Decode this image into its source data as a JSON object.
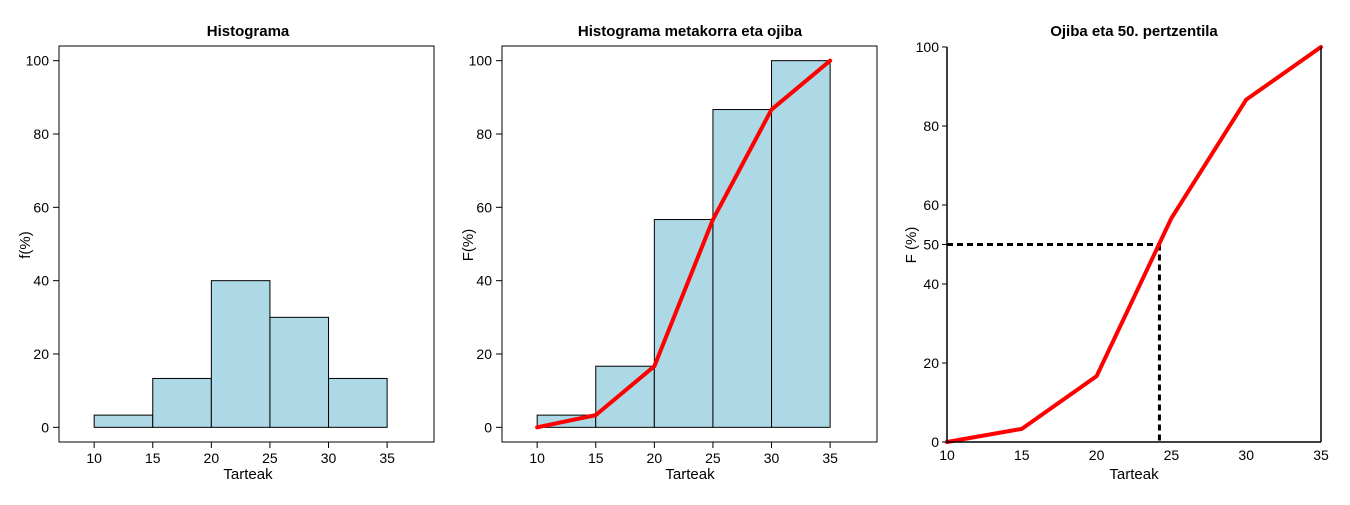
{
  "colors": {
    "bar_fill": "#add8e6",
    "bar_stroke": "#000000",
    "line": "#ff0000",
    "dashed": "#000000"
  },
  "chart_data": [
    {
      "type": "bar",
      "title": "Histograma",
      "xlabel": "Tarteak",
      "ylabel": "f(%)",
      "bin_edges": [
        10,
        15,
        20,
        25,
        30,
        35
      ],
      "values": [
        3.33,
        13.33,
        40,
        30,
        13.33
      ],
      "x_ticks": [
        10,
        15,
        20,
        25,
        30,
        35
      ],
      "y_ticks": [
        0,
        20,
        40,
        60,
        80,
        100
      ],
      "xlim": [
        7,
        39
      ],
      "ylim": [
        -4,
        104
      ],
      "grid": false,
      "legend": "none"
    },
    {
      "type": "bar",
      "title": "Histograma metakorra eta ojiba",
      "xlabel": "Tarteak",
      "ylabel": "F(%)",
      "bin_edges": [
        10,
        15,
        20,
        25,
        30,
        35
      ],
      "values": [
        3.33,
        16.67,
        56.67,
        86.67,
        100
      ],
      "ogive": {
        "x": [
          10,
          15,
          20,
          25,
          30,
          35
        ],
        "y": [
          0,
          3.33,
          16.67,
          56.67,
          86.67,
          100
        ]
      },
      "x_ticks": [
        10,
        15,
        20,
        25,
        30,
        35
      ],
      "y_ticks": [
        0,
        20,
        40,
        60,
        80,
        100
      ],
      "xlim": [
        7,
        39
      ],
      "ylim": [
        -4,
        104
      ],
      "grid": false,
      "legend": "none"
    },
    {
      "type": "line",
      "title": "Ojiba eta 50. pertzentila",
      "xlabel": "Tarteak",
      "ylabel": "F (%)",
      "x": [
        10,
        15,
        20,
        25,
        30,
        35
      ],
      "y": [
        0,
        3.33,
        16.67,
        56.67,
        86.67,
        100
      ],
      "percentile_50": {
        "x": 24.2,
        "y": 50
      },
      "x_ticks": [
        10,
        15,
        20,
        25,
        30,
        35
      ],
      "y_ticks": [
        0,
        20,
        40,
        50,
        60,
        80,
        100
      ],
      "xlim": [
        10,
        35
      ],
      "ylim": [
        0,
        100
      ],
      "grid": false,
      "legend": "none"
    }
  ]
}
